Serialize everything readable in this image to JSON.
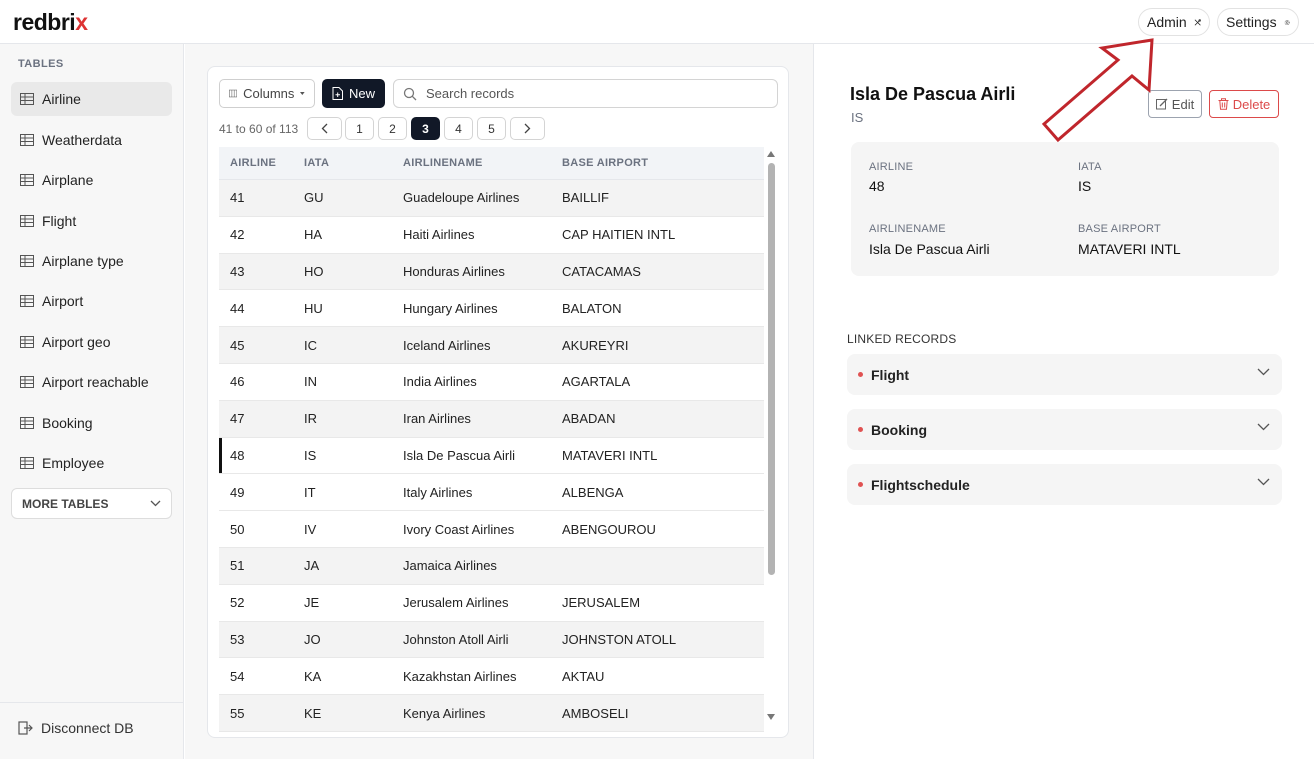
{
  "app": {
    "logo_main": "redbri",
    "logo_accent": "x"
  },
  "header": {
    "admin_label": "Admin",
    "settings_label": "Settings"
  },
  "sidebar": {
    "section_title": "TABLES",
    "items": [
      {
        "label": "Airline",
        "active": true
      },
      {
        "label": "Weatherdata",
        "active": false
      },
      {
        "label": "Airplane",
        "active": false
      },
      {
        "label": "Flight",
        "active": false
      },
      {
        "label": "Airplane type",
        "active": false
      },
      {
        "label": "Airport",
        "active": false
      },
      {
        "label": "Airport geo",
        "active": false
      },
      {
        "label": "Airport reachable",
        "active": false
      },
      {
        "label": "Booking",
        "active": false
      },
      {
        "label": "Employee",
        "active": false
      }
    ],
    "more_tables_label": "MORE TABLES",
    "disconnect_label": "Disconnect DB"
  },
  "toolbar": {
    "columns_label": "Columns",
    "new_label": "New",
    "search_placeholder": "Search records"
  },
  "pagination": {
    "range_text": "41 to 60 of 113",
    "pages": [
      "1",
      "2",
      "3",
      "4",
      "5"
    ],
    "current": "3"
  },
  "table": {
    "columns": [
      "AIRLINE",
      "IATA",
      "AIRLINENAME",
      "BASE AIRPORT"
    ],
    "rows": [
      [
        "41",
        "GU",
        "Guadeloupe Airlines",
        "BAILLIF"
      ],
      [
        "42",
        "HA",
        "Haiti Airlines",
        "CAP HAITIEN INTL"
      ],
      [
        "43",
        "HO",
        "Honduras Airlines",
        "CATACAMAS"
      ],
      [
        "44",
        "HU",
        "Hungary Airlines",
        "BALATON"
      ],
      [
        "45",
        "IC",
        "Iceland Airlines",
        "AKUREYRI"
      ],
      [
        "46",
        "IN",
        "India Airlines",
        "AGARTALA"
      ],
      [
        "47",
        "IR",
        "Iran Airlines",
        "ABADAN"
      ],
      [
        "48",
        "IS",
        "Isla De Pascua Airli",
        "MATAVERI INTL"
      ],
      [
        "49",
        "IT",
        "Italy Airlines",
        "ALBENGA"
      ],
      [
        "50",
        "IV",
        "Ivory Coast Airlines",
        "ABENGOUROU"
      ],
      [
        "51",
        "JA",
        "Jamaica Airlines",
        ""
      ],
      [
        "52",
        "JE",
        "Jerusalem Airlines",
        "JERUSALEM"
      ],
      [
        "53",
        "JO",
        "Johnston Atoll Airli",
        "JOHNSTON ATOLL"
      ],
      [
        "54",
        "KA",
        "Kazakhstan Airlines",
        "AKTAU"
      ],
      [
        "55",
        "KE",
        "Kenya Airlines",
        "AMBOSELI"
      ]
    ],
    "selected_row": 7
  },
  "detail": {
    "title": "Isla De Pascua Airli",
    "subtitle": "IS",
    "edit_label": "Edit",
    "delete_label": "Delete",
    "fields": [
      {
        "label": "AIRLINE",
        "value": "48"
      },
      {
        "label": "IATA",
        "value": "IS"
      },
      {
        "label": "AIRLINENAME",
        "value": "Isla De Pascua Airli"
      },
      {
        "label": "BASE AIRPORT",
        "value": "MATAVERI INTL"
      }
    ],
    "linked_title": "LINKED RECORDS",
    "linked": [
      "Flight",
      "Booking",
      "Flightschedule"
    ]
  },
  "colors": {
    "accent_dark": "#111827",
    "danger": "#dc4a4a",
    "arrow": "#c0262c"
  }
}
